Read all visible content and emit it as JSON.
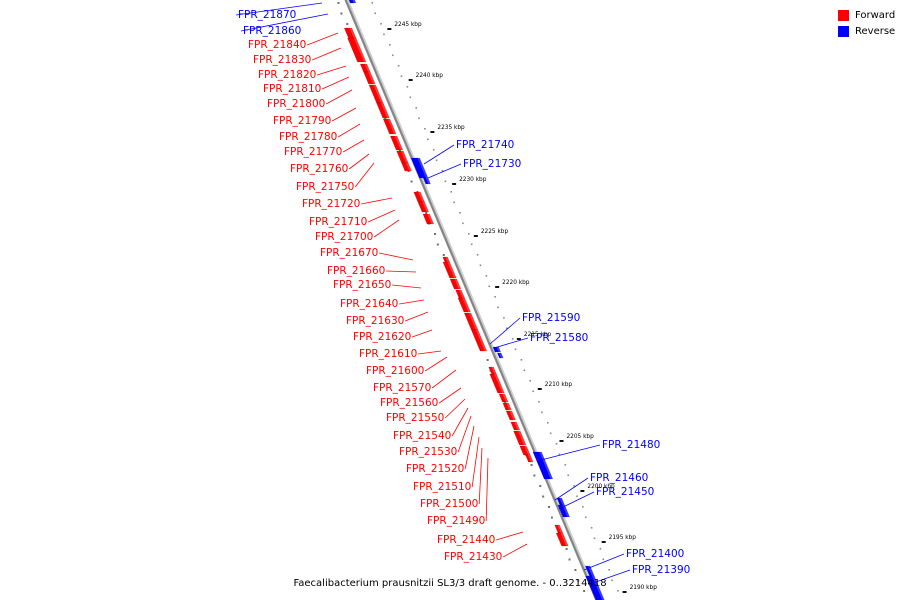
{
  "legend": {
    "forward": {
      "label": "Forward",
      "color": "#ff0000"
    },
    "reverse": {
      "label": "Reverse",
      "color": "#0000ff"
    }
  },
  "caption": "Faecalibacterium prausnitzii SL3/3 draft genome. - 0..3214418",
  "scale": {
    "unit": "kbp",
    "ticks": [
      {
        "label": "2245 kbp"
      },
      {
        "label": "2240 kbp"
      },
      {
        "label": "2235 kbp"
      },
      {
        "label": "2230 kbp"
      },
      {
        "label": "2225 kbp"
      },
      {
        "label": "2220 kbp"
      },
      {
        "label": "2215 kbp"
      },
      {
        "label": "2210 kbp"
      },
      {
        "label": "2205 kbp"
      },
      {
        "label": "2200 kbp"
      },
      {
        "label": "2195 kbp"
      },
      {
        "label": "2190 kbp"
      }
    ]
  },
  "genes": [
    {
      "name": "FPR_21870",
      "strand": "reverse"
    },
    {
      "name": "FPR_21860",
      "strand": "reverse"
    },
    {
      "name": "FPR_21840",
      "strand": "forward"
    },
    {
      "name": "FPR_21830",
      "strand": "forward"
    },
    {
      "name": "FPR_21820",
      "strand": "forward"
    },
    {
      "name": "FPR_21810",
      "strand": "forward"
    },
    {
      "name": "FPR_21800",
      "strand": "forward"
    },
    {
      "name": "FPR_21790",
      "strand": "forward"
    },
    {
      "name": "FPR_21780",
      "strand": "forward"
    },
    {
      "name": "FPR_21770",
      "strand": "forward"
    },
    {
      "name": "FPR_21760",
      "strand": "forward"
    },
    {
      "name": "FPR_21750",
      "strand": "forward"
    },
    {
      "name": "FPR_21740",
      "strand": "reverse"
    },
    {
      "name": "FPR_21730",
      "strand": "reverse"
    },
    {
      "name": "FPR_21720",
      "strand": "forward"
    },
    {
      "name": "FPR_21710",
      "strand": "forward"
    },
    {
      "name": "FPR_21700",
      "strand": "forward"
    },
    {
      "name": "FPR_21670",
      "strand": "forward"
    },
    {
      "name": "FPR_21660",
      "strand": "forward"
    },
    {
      "name": "FPR_21650",
      "strand": "forward"
    },
    {
      "name": "FPR_21640",
      "strand": "forward"
    },
    {
      "name": "FPR_21630",
      "strand": "forward"
    },
    {
      "name": "FPR_21620",
      "strand": "forward"
    },
    {
      "name": "FPR_21610",
      "strand": "forward"
    },
    {
      "name": "FPR_21600",
      "strand": "forward"
    },
    {
      "name": "FPR_21590",
      "strand": "reverse"
    },
    {
      "name": "FPR_21580",
      "strand": "reverse"
    },
    {
      "name": "FPR_21570",
      "strand": "forward"
    },
    {
      "name": "FPR_21560",
      "strand": "forward"
    },
    {
      "name": "FPR_21550",
      "strand": "forward"
    },
    {
      "name": "FPR_21540",
      "strand": "forward"
    },
    {
      "name": "FPR_21530",
      "strand": "forward"
    },
    {
      "name": "FPR_21520",
      "strand": "forward"
    },
    {
      "name": "FPR_21510",
      "strand": "forward"
    },
    {
      "name": "FPR_21500",
      "strand": "forward"
    },
    {
      "name": "FPR_21490",
      "strand": "forward"
    },
    {
      "name": "FPR_21480",
      "strand": "reverse"
    },
    {
      "name": "FPR_21460",
      "strand": "reverse"
    },
    {
      "name": "FPR_21450",
      "strand": "reverse"
    },
    {
      "name": "FPR_21440",
      "strand": "forward"
    },
    {
      "name": "FPR_21430",
      "strand": "forward"
    },
    {
      "name": "FPR_21400",
      "strand": "reverse"
    },
    {
      "name": "FPR_21390",
      "strand": "reverse"
    }
  ]
}
